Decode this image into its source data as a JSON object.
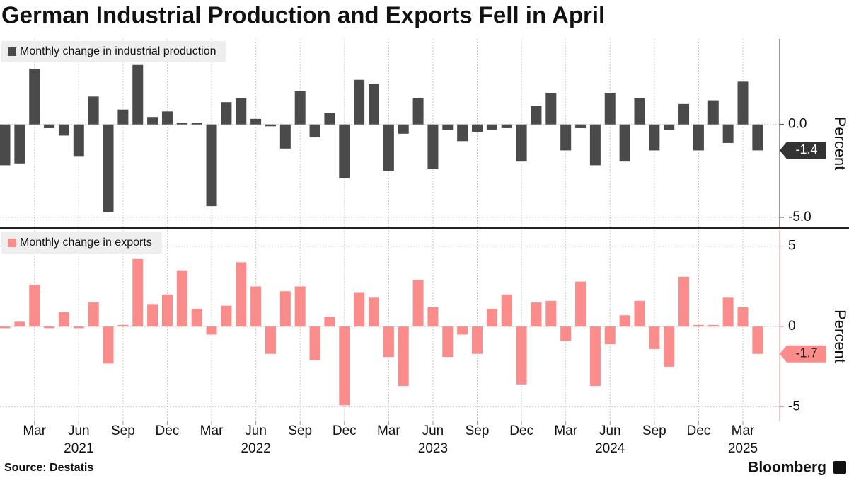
{
  "title": "German Industrial Production and Exports Fell in April",
  "source": "Source: Destatis",
  "logo": "Bloomberg",
  "chart_data": [
    {
      "type": "bar",
      "y_label": "Percent",
      "series": [
        {
          "name": "Monthly change in industrial production",
          "color": "#4a4a4a",
          "values": [
            -2.2,
            -2.1,
            3.0,
            -0.2,
            -0.6,
            -1.7,
            1.5,
            -4.7,
            0.8,
            3.2,
            0.4,
            0.7,
            0.1,
            0.1,
            -4.4,
            1.2,
            1.4,
            0.3,
            -0.1,
            -1.3,
            1.8,
            -0.7,
            0.6,
            -2.9,
            2.4,
            2.2,
            -2.5,
            -0.5,
            1.4,
            -2.4,
            -0.3,
            -0.9,
            -0.4,
            -0.3,
            -0.2,
            -2.0,
            1.0,
            1.7,
            -1.4,
            -0.2,
            -2.2,
            1.7,
            -2.0,
            1.4,
            -1.4,
            -0.3,
            1.1,
            -1.4,
            1.3,
            -1.0,
            2.3,
            -1.4
          ]
        }
      ],
      "ylim": [
        -5.5,
        4.6
      ],
      "yticks": [
        {
          "value": 0,
          "label": "0.0"
        },
        {
          "value": -5,
          "label": "-5.0"
        }
      ],
      "grid": true
    },
    {
      "type": "bar",
      "y_label": "Percent",
      "categories": [
        null,
        null,
        "Mar",
        null,
        null,
        "Jun",
        null,
        null,
        "Sep",
        null,
        null,
        "Dec",
        null,
        null,
        "Mar",
        null,
        null,
        "Jun",
        null,
        null,
        "Sep",
        null,
        null,
        "Dec",
        null,
        null,
        "Mar",
        null,
        null,
        "Jun",
        null,
        null,
        "Sep",
        null,
        null,
        "Dec",
        null,
        null,
        "Mar",
        null,
        null,
        "Jun",
        null,
        null,
        "Sep",
        null,
        null,
        "Dec",
        null,
        null,
        "Mar",
        null
      ],
      "years": [
        "2021",
        "2022",
        "2023",
        "2024",
        "2025"
      ],
      "series": [
        {
          "name": "Monthly change in exports",
          "color": "#fa8c8c",
          "values": [
            -0.1,
            0.3,
            2.6,
            -0.1,
            0.9,
            -0.1,
            1.5,
            -2.3,
            0.1,
            4.2,
            1.4,
            2.0,
            3.5,
            1.1,
            -0.5,
            1.3,
            4.0,
            2.5,
            -1.7,
            2.2,
            2.5,
            -2.1,
            0.6,
            -4.9,
            2.1,
            1.8,
            -1.9,
            -3.7,
            2.9,
            1.2,
            -1.9,
            -0.5,
            -1.7,
            1.1,
            2.0,
            -3.6,
            1.5,
            1.6,
            -0.9,
            2.8,
            -3.7,
            -1.1,
            0.7,
            1.6,
            -1.4,
            -2.5,
            3.1,
            0.1,
            0.1,
            1.8,
            1.2,
            -1.7
          ]
        }
      ],
      "ylim": [
        -5.9,
        6.0
      ],
      "yticks": [
        5,
        0,
        -5
      ],
      "grid": true
    }
  ]
}
